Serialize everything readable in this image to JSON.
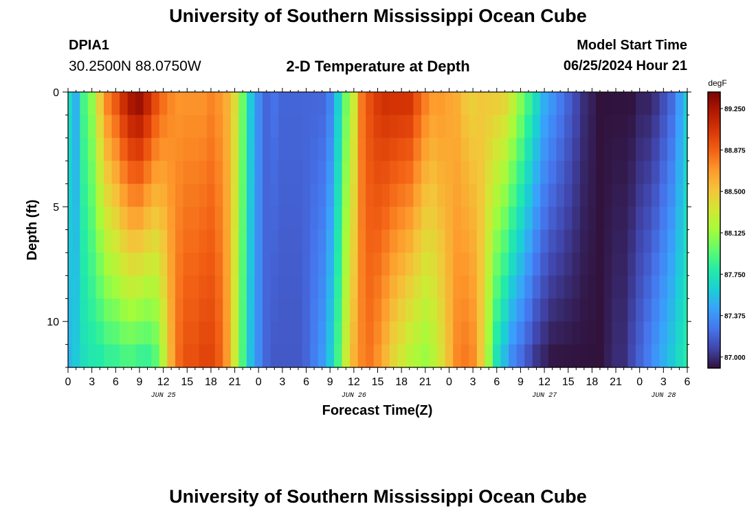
{
  "header": {
    "title": "University of Southern Mississippi Ocean Cube",
    "station_id": "DPIA1",
    "coords": "30.2500N  88.0750W",
    "plot_title": "2-D Temperature at Depth",
    "model_start_label": "Model Start Time",
    "model_start_value": "06/25/2024 Hour 21"
  },
  "footer": {
    "title": "University of Southern Mississippi Ocean Cube"
  },
  "chart_data": {
    "type": "heatmap",
    "title": "2-D Temperature at Depth",
    "xlabel": "Forecast Time(Z)",
    "ylabel": "Depth (ft)",
    "x_hours_from_jun25_00": [
      0,
      78
    ],
    "y_depth_ft": [
      0,
      12
    ],
    "x_tick_labels": [
      "0",
      "3",
      "6",
      "9",
      "12",
      "15",
      "18",
      "21",
      "0",
      "3",
      "6",
      "9",
      "12",
      "15",
      "18",
      "21",
      "0",
      "3",
      "6",
      "9",
      "12",
      "15",
      "18",
      "21",
      "0",
      "3",
      "6"
    ],
    "date_labels": [
      {
        "label": "JUN 25",
        "hour": 12
      },
      {
        "label": "JUN 26",
        "hour": 36
      },
      {
        "label": "JUN 27",
        "hour": 60
      },
      {
        "label": "JUN 28",
        "hour": 75
      }
    ],
    "y_tick_labels": [
      "0",
      "5",
      "10"
    ],
    "y_ticks": [
      0,
      5,
      10
    ],
    "colorbar": {
      "unit": "degF",
      "ticks": [
        "89.250",
        "88.875",
        "88.500",
        "88.125",
        "87.750",
        "87.375",
        "87.000"
      ],
      "tick_values": [
        89.25,
        88.875,
        88.5,
        88.125,
        87.75,
        87.375,
        87.0
      ],
      "range": [
        86.9,
        89.4
      ],
      "palette": [
        "#30123b",
        "#4145ab",
        "#4675ed",
        "#39a2fc",
        "#1bcfd4",
        "#24eca6",
        "#61fc6c",
        "#a4fc3b",
        "#d1e834",
        "#f3c63a",
        "#fe9b2d",
        "#f36315",
        "#d93806",
        "#b11901",
        "#7a0403"
      ]
    },
    "time_profiles": {
      "hours": [
        0,
        1,
        2,
        3,
        4,
        5,
        6,
        7,
        8,
        9,
        10,
        11,
        12,
        13,
        14,
        15,
        16,
        17,
        18,
        19,
        20,
        21,
        22,
        23,
        24,
        25,
        26,
        27,
        28,
        29,
        30,
        31,
        32,
        33,
        34,
        35,
        36,
        37,
        38,
        39,
        40,
        41,
        42,
        43,
        44,
        45,
        46,
        47,
        48,
        49,
        50,
        51,
        52,
        53,
        54,
        55,
        56,
        57,
        58,
        59,
        60,
        61,
        62,
        63,
        64,
        65,
        66,
        67,
        68,
        69,
        70,
        71,
        72,
        73,
        74,
        75,
        76,
        77,
        78
      ],
      "surface": [
        87.7,
        87.5,
        87.9,
        88.1,
        88.5,
        88.8,
        88.95,
        89.15,
        89.3,
        89.35,
        89.2,
        89.0,
        88.85,
        88.75,
        88.7,
        88.7,
        88.7,
        88.7,
        88.75,
        88.7,
        88.6,
        88.4,
        88.0,
        87.6,
        87.35,
        87.2,
        87.25,
        87.2,
        87.2,
        87.2,
        87.2,
        87.2,
        87.2,
        87.3,
        87.6,
        88.0,
        88.3,
        88.8,
        88.95,
        89.05,
        89.1,
        89.1,
        89.1,
        89.1,
        88.95,
        88.8,
        88.7,
        88.7,
        88.65,
        88.6,
        88.5,
        88.45,
        88.5,
        88.5,
        88.5,
        88.45,
        88.3,
        88.1,
        87.9,
        87.7,
        87.5,
        87.4,
        87.3,
        87.2,
        87.1,
        87.0,
        86.95,
        86.9,
        86.9,
        86.9,
        86.9,
        86.9,
        86.95,
        86.95,
        87.0,
        87.1,
        87.2,
        87.4,
        87.6
      ],
      "bottom": [
        87.5,
        87.6,
        87.7,
        87.75,
        87.75,
        87.8,
        87.8,
        87.85,
        87.85,
        87.8,
        87.8,
        87.9,
        88.2,
        88.6,
        88.85,
        88.95,
        88.95,
        89.0,
        89.0,
        88.9,
        88.7,
        88.3,
        87.9,
        87.55,
        87.35,
        87.2,
        87.15,
        87.15,
        87.15,
        87.15,
        87.2,
        87.3,
        87.4,
        87.6,
        87.9,
        88.3,
        88.6,
        88.75,
        88.8,
        88.7,
        88.55,
        88.4,
        88.3,
        88.2,
        88.15,
        88.1,
        88.2,
        88.35,
        88.55,
        88.75,
        88.8,
        88.75,
        88.5,
        88.1,
        87.7,
        87.5,
        87.3,
        87.2,
        87.1,
        87.0,
        86.95,
        86.9,
        86.9,
        86.9,
        86.9,
        86.9,
        86.9,
        86.9,
        86.95,
        87.0,
        87.0,
        87.1,
        87.2,
        87.3,
        87.4,
        87.5,
        87.6,
        87.7,
        87.8
      ]
    }
  }
}
